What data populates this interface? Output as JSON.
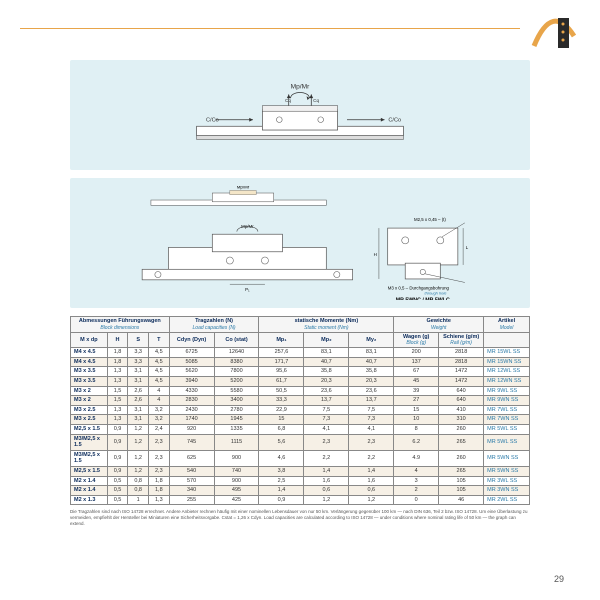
{
  "page_number": "29",
  "diagrams": {
    "d1_labels": {
      "top": "Mp/Mr",
      "left": "C/Co",
      "right": "C/Co",
      "mid_l": "Cq",
      "mid_r": "Cq"
    },
    "d2_labels": {
      "top1": "Mp/Mr",
      "top2": "Mp/Mr",
      "thread": "M2,5 x 0,45 – (t)",
      "thru": "M3 x 0,5 – Durchgangsbohrung",
      "thru_en": "through hole",
      "model": "MR 5WNC / MR 5WLC",
      "dims": [
        "P₁",
        "H",
        "L"
      ]
    }
  },
  "table": {
    "groups": [
      {
        "main": "Abmessungen Führungswagen",
        "sub": "Block dimensions",
        "span": 4
      },
      {
        "main": "Tragzahlen (N)",
        "sub": "Load capacities (N)",
        "span": 2
      },
      {
        "main": "statische Momente (Nm)",
        "sub": "Static moment (Nm)",
        "span": 3
      },
      {
        "main": "Gewichte",
        "sub": "Weight",
        "span": 2
      },
      {
        "main": "Artikel",
        "sub": "Model",
        "span": 1
      }
    ],
    "headers": [
      "M x dp",
      "H",
      "S",
      "T",
      "Cdyn (Dyn)",
      "Co (stat)",
      "Mp₁",
      "Mp₂",
      "My₂",
      "Wagen (g)",
      "Schiene (g/m)",
      ""
    ],
    "sub_headers": [
      "",
      "",
      "",
      "",
      "",
      "",
      "",
      "",
      "",
      "Block (g)",
      "Rail (g/m)",
      ""
    ],
    "rows": [
      [
        "M4 x 4.5",
        "1,8",
        "3,3",
        "4,5",
        "6725",
        "12640",
        "257,6",
        "83,1",
        "83,1",
        "200",
        "2818",
        "MR 15WL SS"
      ],
      [
        "M4 x 4.5",
        "1,8",
        "3,3",
        "4,5",
        "5085",
        "8380",
        "171,7",
        "40,7",
        "40,7",
        "137",
        "2818",
        "MR 15WN SS"
      ],
      [
        "M3 x 3.5",
        "1,3",
        "3,1",
        "4,5",
        "5620",
        "7800",
        "95,6",
        "35,8",
        "35,8",
        "67",
        "1472",
        "MR 12WL SS"
      ],
      [
        "M3 x 3.5",
        "1,3",
        "3,1",
        "4,5",
        "3940",
        "5200",
        "61,7",
        "20,3",
        "20,3",
        "45",
        "1472",
        "MR 12WN SS"
      ],
      [
        "M3 x 2",
        "1,5",
        "2,6",
        "4",
        "4330",
        "5580",
        "50,5",
        "23,6",
        "23,6",
        "39",
        "640",
        "MR 9WL SS"
      ],
      [
        "M3 x 2",
        "1,5",
        "2,6",
        "4",
        "2830",
        "3400",
        "33,3",
        "13,7",
        "13,7",
        "27",
        "640",
        "MR 9WN SS"
      ],
      [
        "M3 x 2.5",
        "1,3",
        "3,1",
        "3,2",
        "2430",
        "2780",
        "22,9",
        "7,5",
        "7,5",
        "15",
        "410",
        "MR 7WL SS"
      ],
      [
        "M3 x 2.5",
        "1,3",
        "3,1",
        "3,2",
        "1740",
        "1945",
        "15",
        "7,3",
        "7,3",
        "10",
        "310",
        "MR 7WN SS"
      ],
      [
        "M2,5 x 1.5",
        "0,9",
        "1,2",
        "2,4",
        "920",
        "1335",
        "6,8",
        "4,1",
        "4,1",
        "8",
        "260",
        "MR 5WL SS"
      ],
      [
        "M3/M2,5 x 1.5",
        "0,9",
        "1,2",
        "2,3",
        "745",
        "1115",
        "5,6",
        "2,3",
        "2,3",
        "6.2",
        "265",
        "MR 5WL SS"
      ],
      [
        "M3/M2,5 x 1.5",
        "0,9",
        "1,2",
        "2,3",
        "625",
        "900",
        "4,6",
        "2,2",
        "2,2",
        "4.9",
        "260",
        "MR 5WN SS"
      ],
      [
        "M2,5 x 1.5",
        "0,9",
        "1,2",
        "2,3",
        "540",
        "740",
        "3,8",
        "1,4",
        "1,4",
        "4",
        "265",
        "MR 5WN SS"
      ],
      [
        "M2 x 1.4",
        "0,5",
        "0,8",
        "1,8",
        "570",
        "900",
        "2,5",
        "1,6",
        "1,6",
        "3",
        "105",
        "MR 3WL SS"
      ],
      [
        "M2 x 1.4",
        "0,5",
        "0,8",
        "1,8",
        "340",
        "495",
        "1,4",
        "0,6",
        "0,6",
        "2",
        "105",
        "MR 3WN SS"
      ],
      [
        "M2 x 1.3",
        "0,5",
        "1",
        "1,3",
        "255",
        "425",
        "0,9",
        "1,2",
        "1,2",
        "0",
        "46",
        "MR 2WL SS"
      ]
    ]
  },
  "footnote": "Die Tragzahlen sind nach ISO 14728 errechnet. Andere Anbieter rechnen häufig mit einer nominellen Lebensdauer von nur 50 km. Verlängerung gegenüber 100 km — nach DIN 636, Teil 2 bzw. ISO 14728. Um eine Überlastung zu vermeiden, empfiehlt der Hersteller bei Miniaturen eine Sicherheitsvorgabe. Cstat = 1,26 x Cdyn. Load capacities are calculated according to ISO 14728 — under conditions where nominal rating life of 50 km — the graph can extend.",
  "colors": {
    "accent": "#e8a54a",
    "panel": "#e0f0f4",
    "header_main": "#0a2a5a",
    "header_sub": "#2a7aa8",
    "row_alt": "#f6f0e6"
  }
}
